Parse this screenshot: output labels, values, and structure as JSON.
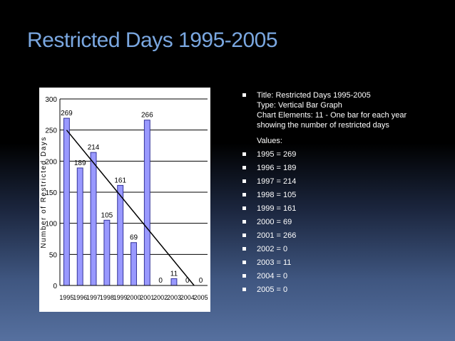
{
  "slide": {
    "title": "Restricted Days 1995-2005"
  },
  "info": {
    "lines": [
      "Title: Restricted Days 1995-2005",
      "Type: Vertical Bar Graph",
      "Chart Elements: 11 - One bar for each year",
      "showing the number of restricted days"
    ],
    "values_heading": "Values:",
    "values": [
      "1995 = 269",
      "1996 = 189",
      "1997 = 214",
      "1998 = 105",
      "1999 = 161",
      "2000 = 69",
      "2001 = 266",
      "2002 = 0",
      "2003 = 11",
      "2004 = 0",
      "2005 = 0"
    ]
  },
  "colors": {
    "title": "#7aa7e0",
    "bar_fill": "#9999ff",
    "bar_stroke": "#333399",
    "trendline": "#000000"
  },
  "chart_data": {
    "type": "bar",
    "categories": [
      "1995",
      "1996",
      "1997",
      "1998",
      "1999",
      "2000",
      "2001",
      "2002",
      "2003",
      "2004",
      "2005"
    ],
    "values": [
      269,
      189,
      214,
      105,
      161,
      69,
      266,
      0,
      11,
      0,
      0
    ],
    "data_labels": [
      "269",
      "189",
      "214",
      "105",
      "161",
      "69",
      "266",
      "0",
      "11",
      "0",
      "0"
    ],
    "ylabel": "Number of Restricted Days",
    "ylim": [
      0,
      300
    ],
    "yticks": [
      0,
      50,
      100,
      150,
      200,
      250,
      300
    ],
    "grid": true,
    "trendline": {
      "type": "linear",
      "from": [
        1995,
        250
      ],
      "to": [
        2004.5,
        0
      ]
    }
  }
}
